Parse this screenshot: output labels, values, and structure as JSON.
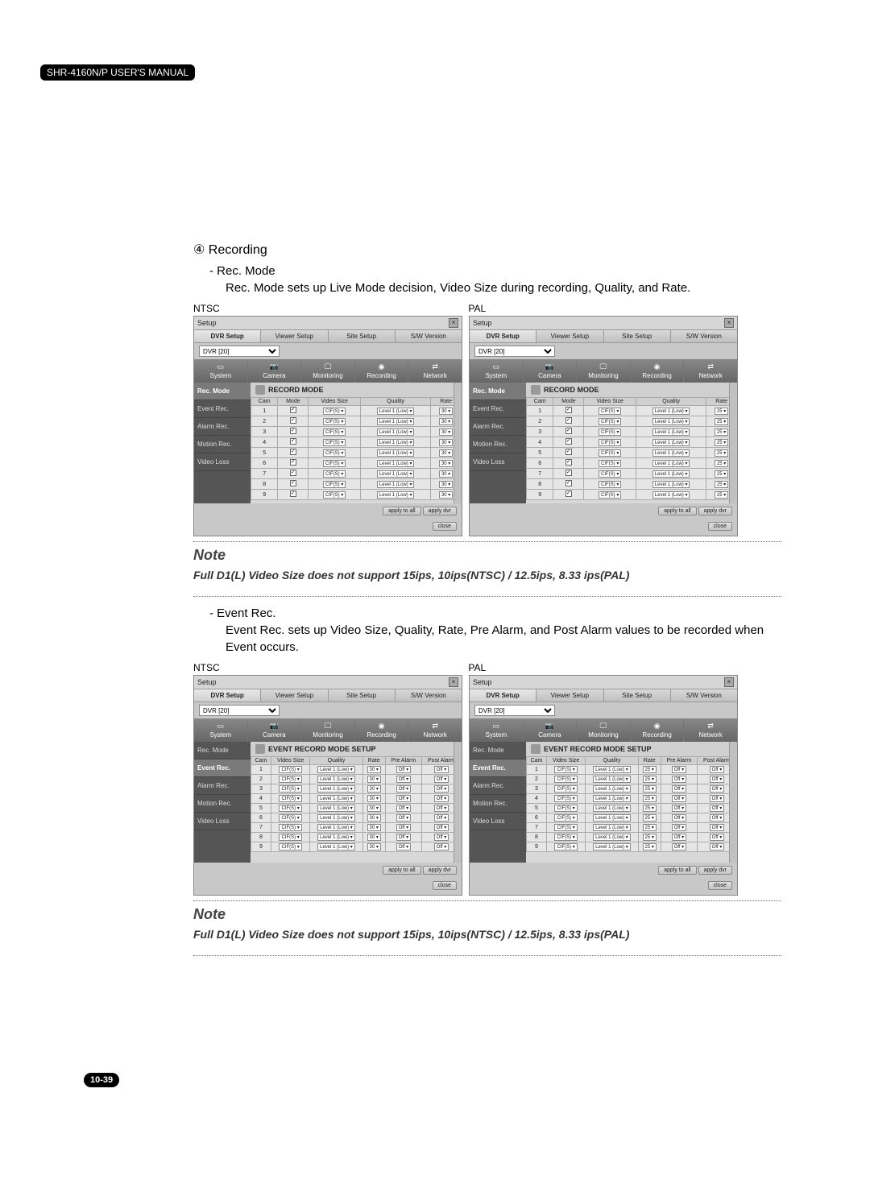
{
  "header": "SHR-4160N/P USER'S MANUAL",
  "page_number": "10-39",
  "section4": {
    "num": "④",
    "title": "Recording",
    "recmode_label": "- Rec. Mode",
    "recmode_desc": "Rec. Mode sets up Live Mode decision, Video Size during recording, Quality, and Rate.",
    "eventrec_label": "- Event Rec.",
    "eventrec_desc": "Event Rec. sets up Video Size, Quality, Rate, Pre Alarm, and Post Alarm values to be recorded when Event occurs."
  },
  "labels": {
    "ntsc": "NTSC",
    "pal": "PAL"
  },
  "note": {
    "title": "Note",
    "text": "Full D1(L) Video Size does not support 15ips, 10ips(NTSC) / 12.5ips, 8.33 ips(PAL)"
  },
  "setup": {
    "title": "Setup",
    "tabs": [
      "DVR Setup",
      "Viewer Setup",
      "Site Setup",
      "S/W Version"
    ],
    "dvr_select": "DVR [20]",
    "inner_tabs": [
      "System",
      "Camera",
      "Monitoring",
      "Recording",
      "Network"
    ],
    "side_tabs": [
      "Rec. Mode",
      "Event Rec.",
      "Alarm Rec.",
      "Motion Rec.",
      "Video Loss"
    ],
    "record_mode_title": "RECORD MODE",
    "event_mode_title": "EVENT RECORD MODE SETUP",
    "rec_headers": [
      "Cam",
      "Mode",
      "Video Size",
      "Quality",
      "Rate"
    ],
    "event_headers": [
      "Cam",
      "Video Size",
      "Quality",
      "Rate",
      "Pre Alarm",
      "Post Alarm"
    ],
    "videosize": "CIF(S)",
    "quality": "Level 1 (Low)",
    "rate_ntsc": "30",
    "rate_pal": "25",
    "off": "Off",
    "btns": {
      "apply_all": "apply to all",
      "apply_dvr": "apply dvr",
      "close": "close"
    }
  },
  "style": {
    "bg": "#ffffff",
    "window_bg": "#c8c8c8",
    "dark_tab_bg": "#777777",
    "side_bg": "#555555",
    "cell_bg": "#e6e6e6",
    "note_color": "#444444",
    "dotted": "#707070"
  }
}
